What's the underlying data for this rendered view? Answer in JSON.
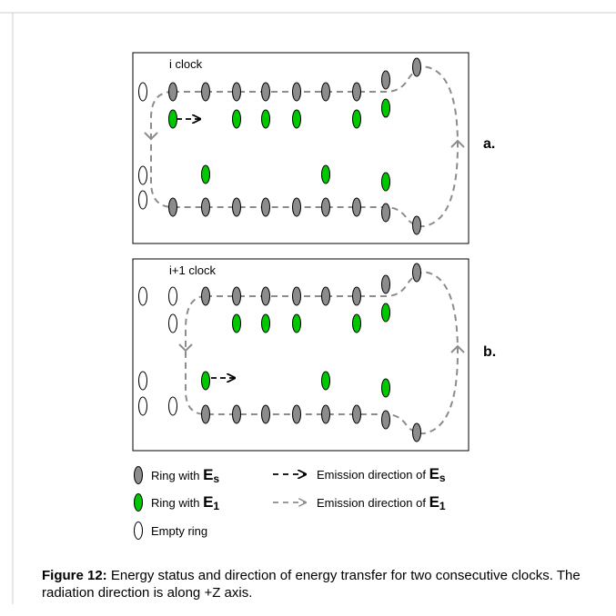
{
  "panels": [
    {
      "id": "a",
      "clock_label": "i clock",
      "panel_label": "a."
    },
    {
      "id": "b",
      "clock_label": "i+1 clock",
      "panel_label": "b."
    }
  ],
  "legend": {
    "ring_es_prefix": "Ring with ",
    "ring_e1_prefix": "Ring with ",
    "empty_ring": "Empty ring",
    "emission_es_prefix": "Emission direction of ",
    "emission_e1_prefix": "Emission direction of ",
    "symbol_E": "E",
    "sub_s": "s",
    "sub_1": "1"
  },
  "caption": {
    "label": "Figure 12:",
    "text": " Energy status and direction of energy transfer for two consecutive clocks. The radiation direction is along +Z axis."
  },
  "colors": {
    "gray_ring": "#8c8c8c",
    "green_ring": "#00c800",
    "empty_ring": "#ffffff",
    "dashed_line": "#8c8c8c",
    "frame": "#000000"
  }
}
